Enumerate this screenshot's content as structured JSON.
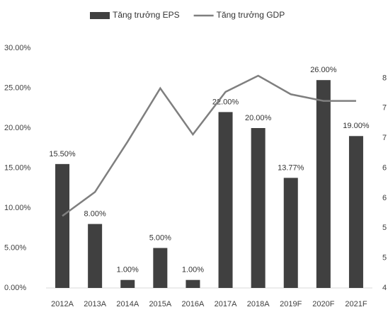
{
  "chart_data": {
    "type": "bar",
    "categories": [
      "2012A",
      "2013A",
      "2014A",
      "2015A",
      "2016A",
      "2017A",
      "2018A",
      "2019F",
      "2020F",
      "2021F"
    ],
    "series": [
      {
        "name": "Tăng trưởng EPS",
        "color": "#404040",
        "values": [
          15.5,
          8,
          1,
          5,
          1,
          22,
          20,
          13.77,
          26,
          19
        ],
        "value_labels": [
          "15.50%",
          "8.00%",
          "1.00%",
          "5.00%",
          "1.00%",
          "22.00%",
          "20.00%",
          "13.77%",
          "26.00%",
          "19.00%"
        ]
      },
      {
        "name": "Tăng trưởng GDP",
        "color": "#7f7f7f",
        "type": "line",
        "axis": "y2",
        "values": [
          5.2,
          5.6,
          6.44,
          7.33,
          6.56,
          7.27,
          7.54,
          7.23,
          7.12,
          7.12
        ]
      }
    ],
    "ylim": [
      0,
      30
    ],
    "yticks": [
      {
        "value": 0,
        "label": "0.00%"
      },
      {
        "value": 5,
        "label": "5.00%"
      },
      {
        "value": 10,
        "label": "10.00%"
      },
      {
        "value": 15,
        "label": "15.00%"
      },
      {
        "value": 20,
        "label": "20.00%"
      },
      {
        "value": 25,
        "label": "25.00%"
      },
      {
        "value": 30,
        "label": "30.00%"
      }
    ],
    "y2lim": [
      4,
      8
    ],
    "y2ticks": [
      {
        "value": 4,
        "label": "4"
      },
      {
        "value": 4.5,
        "label": "5"
      },
      {
        "value": 5,
        "label": "5"
      },
      {
        "value": 5.5,
        "label": "6"
      },
      {
        "value": 6,
        "label": "6"
      },
      {
        "value": 6.5,
        "label": "7"
      },
      {
        "value": 7,
        "label": "7"
      },
      {
        "value": 7.5,
        "label": "8"
      }
    ],
    "legend": "top"
  }
}
